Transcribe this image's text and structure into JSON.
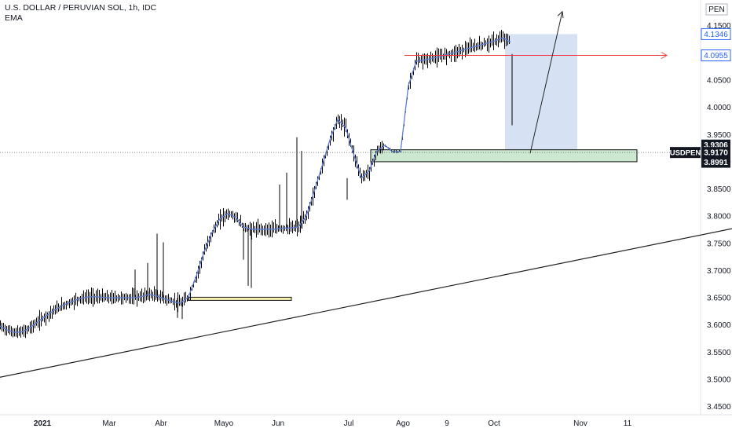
{
  "header": {
    "symbol_title": "U.S. DOLLAR / PERUVIAN SOL, 1h, IDC",
    "indicator": "EMA"
  },
  "price_axis": {
    "currency": "PEN",
    "ticks": [
      "4.1500",
      "4.1000",
      "4.0500",
      "4.0000",
      "3.9500",
      "3.9000",
      "3.8500",
      "3.8000",
      "3.7500",
      "3.7000",
      "3.6500",
      "3.6000",
      "3.5500",
      "3.5000",
      "3.4500"
    ],
    "badges": [
      {
        "text": "4.1346",
        "value": 4.1346,
        "kind": "outline-blue"
      },
      {
        "text": "4.0955",
        "value": 4.0955,
        "kind": "outline-blue"
      },
      {
        "text": "3.9306",
        "value": 3.9306,
        "kind": "dark"
      },
      {
        "text": "3.9170",
        "value": 3.917,
        "kind": "dark"
      },
      {
        "text": "3.8991",
        "value": 3.8991,
        "kind": "dark"
      }
    ],
    "symbol_badge": "USDPEN"
  },
  "time_axis": {
    "labels": [
      {
        "text": "2021",
        "bold": true
      },
      {
        "text": "Mar"
      },
      {
        "text": "Abr"
      },
      {
        "text": "Mayo"
      },
      {
        "text": "Jun"
      },
      {
        "text": "Jul"
      },
      {
        "text": "Ago"
      },
      {
        "text": "9"
      },
      {
        "text": "Oct"
      },
      {
        "text": "Nov"
      },
      {
        "text": "11"
      }
    ]
  },
  "colors": {
    "ema": "#5b7fd6",
    "candle": "#000000",
    "horizontal_level": "#ef3b3b",
    "projection_box": "#c5d5f0",
    "support_zone": "#cde8d0",
    "demand_zone": "#f7f1b0",
    "trendline": "#222222",
    "dark_badge": "#131722",
    "blue_badge": "#2962ff"
  },
  "chart_data": {
    "type": "line",
    "series": [
      {
        "name": "EMA",
        "x": [
          0,
          10,
          20,
          30,
          40,
          50,
          60,
          70,
          80,
          90,
          100,
          110,
          120,
          130,
          140,
          150,
          160,
          170,
          180,
          190,
          200,
          210,
          220,
          230,
          240,
          250,
          260,
          270,
          280,
          290,
          300,
          310,
          320,
          330,
          340,
          350,
          360,
          370,
          380,
          390,
          400,
          410,
          420,
          430,
          440,
          450,
          460,
          470,
          480,
          490,
          500,
          510,
          520,
          530,
          540,
          550,
          560,
          570,
          580,
          590,
          600,
          610,
          620,
          630,
          640,
          650
        ],
        "values": [
          3.598,
          3.59,
          3.586,
          3.588,
          3.597,
          3.608,
          3.618,
          3.628,
          3.636,
          3.642,
          3.648,
          3.651,
          3.652,
          3.651,
          3.65,
          3.65,
          3.65,
          3.65,
          3.652,
          3.656,
          3.653,
          3.648,
          3.643,
          3.64,
          3.652,
          3.69,
          3.735,
          3.77,
          3.795,
          3.805,
          3.798,
          3.78,
          3.776,
          3.776,
          3.776,
          3.776,
          3.778,
          3.778,
          3.78,
          3.8,
          3.845,
          3.892,
          3.94,
          3.978,
          3.963,
          3.915,
          3.87,
          3.883,
          3.92,
          3.93,
          3.918,
          3.919,
          4.04,
          4.085,
          4.087,
          4.09,
          4.093,
          4.098,
          4.101,
          4.106,
          4.11,
          4.114,
          4.118,
          4.122,
          4.128,
          4.12
        ]
      }
    ],
    "horizontal_levels": [
      4.0955,
      3.917
    ],
    "zones": [
      {
        "name": "support",
        "from": 3.9,
        "to": 3.922
      },
      {
        "name": "demand",
        "from": 3.6455,
        "to": 3.651
      }
    ],
    "projection_box": {
      "from": 3.8991,
      "to": 4.1346
    },
    "trendline": [
      [
        0,
        3.504
      ],
      [
        932,
        3.777
      ]
    ],
    "ylim": [
      3.43,
      4.185
    ],
    "xlabel": "",
    "ylabel": ""
  }
}
